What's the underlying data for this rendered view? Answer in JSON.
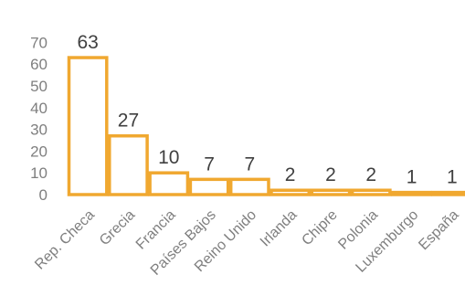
{
  "chart_data": {
    "type": "bar",
    "title": "",
    "xlabel": "",
    "ylabel": "",
    "categories": [
      "Rep. Checa",
      "Grecia",
      "Francia",
      "Países Bajos",
      "Reino Unido",
      "Irlanda",
      "Chipre",
      "Polonia",
      "Luxemburgo",
      "España"
    ],
    "values": [
      63,
      27,
      10,
      7,
      7,
      2,
      2,
      2,
      1,
      1
    ],
    "data_labels": [
      "63",
      "27",
      "10",
      "7",
      "7",
      "2",
      "2",
      "2",
      "1",
      "1"
    ],
    "ylim": [
      0,
      70
    ],
    "yticks": [
      "0",
      "10",
      "20",
      "30",
      "40",
      "50",
      "60",
      "70"
    ],
    "grid": false,
    "legend": "none",
    "bar_fill": "#ffffff",
    "bar_stroke": "#f0a830"
  }
}
